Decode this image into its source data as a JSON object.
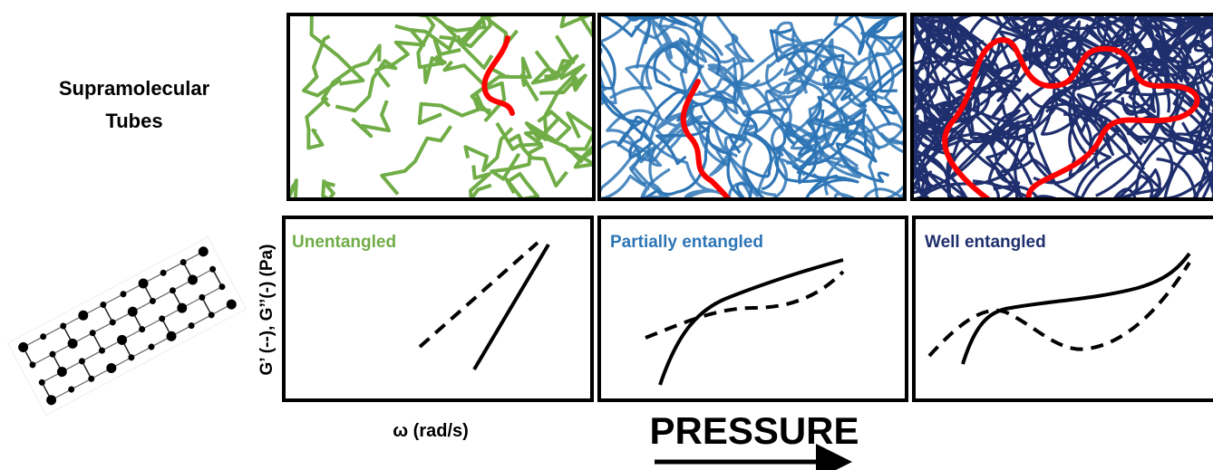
{
  "row_label": [
    "Supramolecular",
    "Tubes"
  ],
  "panels": [
    {
      "label": "Unentangled",
      "color": "#70ad47"
    },
    {
      "label": "Partially entangled",
      "color": "#2e75b6"
    },
    {
      "label": "Well entangled",
      "color": "#1f2f6e"
    }
  ],
  "y_axis_label": "G’ (--), G’’(-) (Pa)",
  "x_axis_label": "ω (rad/s)",
  "arrow_label": "PRESSURE"
}
